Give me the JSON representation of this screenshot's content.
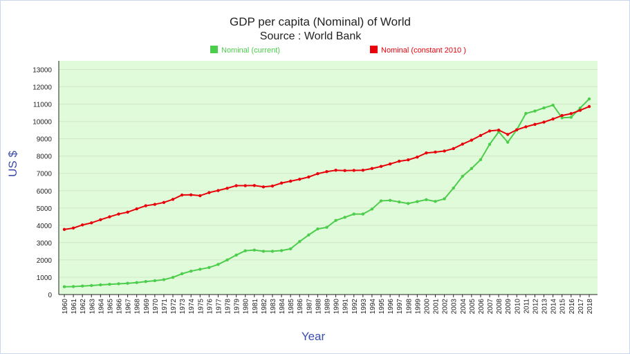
{
  "chart_data": {
    "type": "line",
    "title": "GDP per capita (Nominal) of World",
    "subtitle": "Source : World Bank",
    "xlabel": "Year",
    "ylabel": "US $",
    "legend_position": "top",
    "ylim": [
      0,
      13500
    ],
    "yticks": [
      0,
      1000,
      2000,
      3000,
      4000,
      5000,
      6000,
      7000,
      8000,
      9000,
      10000,
      11000,
      12000,
      13000
    ],
    "x": [
      "1960",
      "1961",
      "1962",
      "1963",
      "1964",
      "1965",
      "1966",
      "1967",
      "1968",
      "1969",
      "1970",
      "1971",
      "1972",
      "1973",
      "1974",
      "1975",
      "1976",
      "1977",
      "1978",
      "1979",
      "1980",
      "1981",
      "1982",
      "1983",
      "1984",
      "1985",
      "1986",
      "1987",
      "1988",
      "1989",
      "1990",
      "1991",
      "1992",
      "1993",
      "1994",
      "1995",
      "1996",
      "1997",
      "1998",
      "1999",
      "2000",
      "2001",
      "2002",
      "2003",
      "2004",
      "2005",
      "2006",
      "2007",
      "2008",
      "2009",
      "2010",
      "2011",
      "2012",
      "2013",
      "2014",
      "2015",
      "2016",
      "2017",
      "2018"
    ],
    "series": [
      {
        "name": "Nominal (current)",
        "color": "#4ccd4c",
        "values": [
          450,
          460,
          490,
          520,
          560,
          590,
          620,
          650,
          690,
          750,
          800,
          860,
          990,
          1200,
          1350,
          1460,
          1560,
          1740,
          2000,
          2280,
          2530,
          2570,
          2500,
          2500,
          2540,
          2640,
          3060,
          3440,
          3790,
          3880,
          4280,
          4460,
          4650,
          4650,
          4940,
          5410,
          5440,
          5350,
          5260,
          5370,
          5480,
          5380,
          5530,
          6150,
          6830,
          7280,
          7790,
          8680,
          9400,
          8800,
          9520,
          10460,
          10600,
          10780,
          10940,
          10210,
          10240,
          10770,
          11300
        ]
      },
      {
        "name": "Nominal (constant 2010 )",
        "color": "#e8000b",
        "values": [
          3760,
          3840,
          4020,
          4140,
          4320,
          4490,
          4650,
          4760,
          4950,
          5130,
          5210,
          5320,
          5500,
          5750,
          5760,
          5710,
          5890,
          6010,
          6140,
          6290,
          6290,
          6300,
          6220,
          6270,
          6440,
          6550,
          6660,
          6790,
          6980,
          7100,
          7180,
          7160,
          7170,
          7180,
          7280,
          7400,
          7540,
          7700,
          7780,
          7940,
          8180,
          8230,
          8290,
          8430,
          8690,
          8920,
          9190,
          9450,
          9500,
          9250,
          9520,
          9690,
          9830,
          9960,
          10140,
          10340,
          10450,
          10640,
          10860
        ]
      }
    ]
  }
}
